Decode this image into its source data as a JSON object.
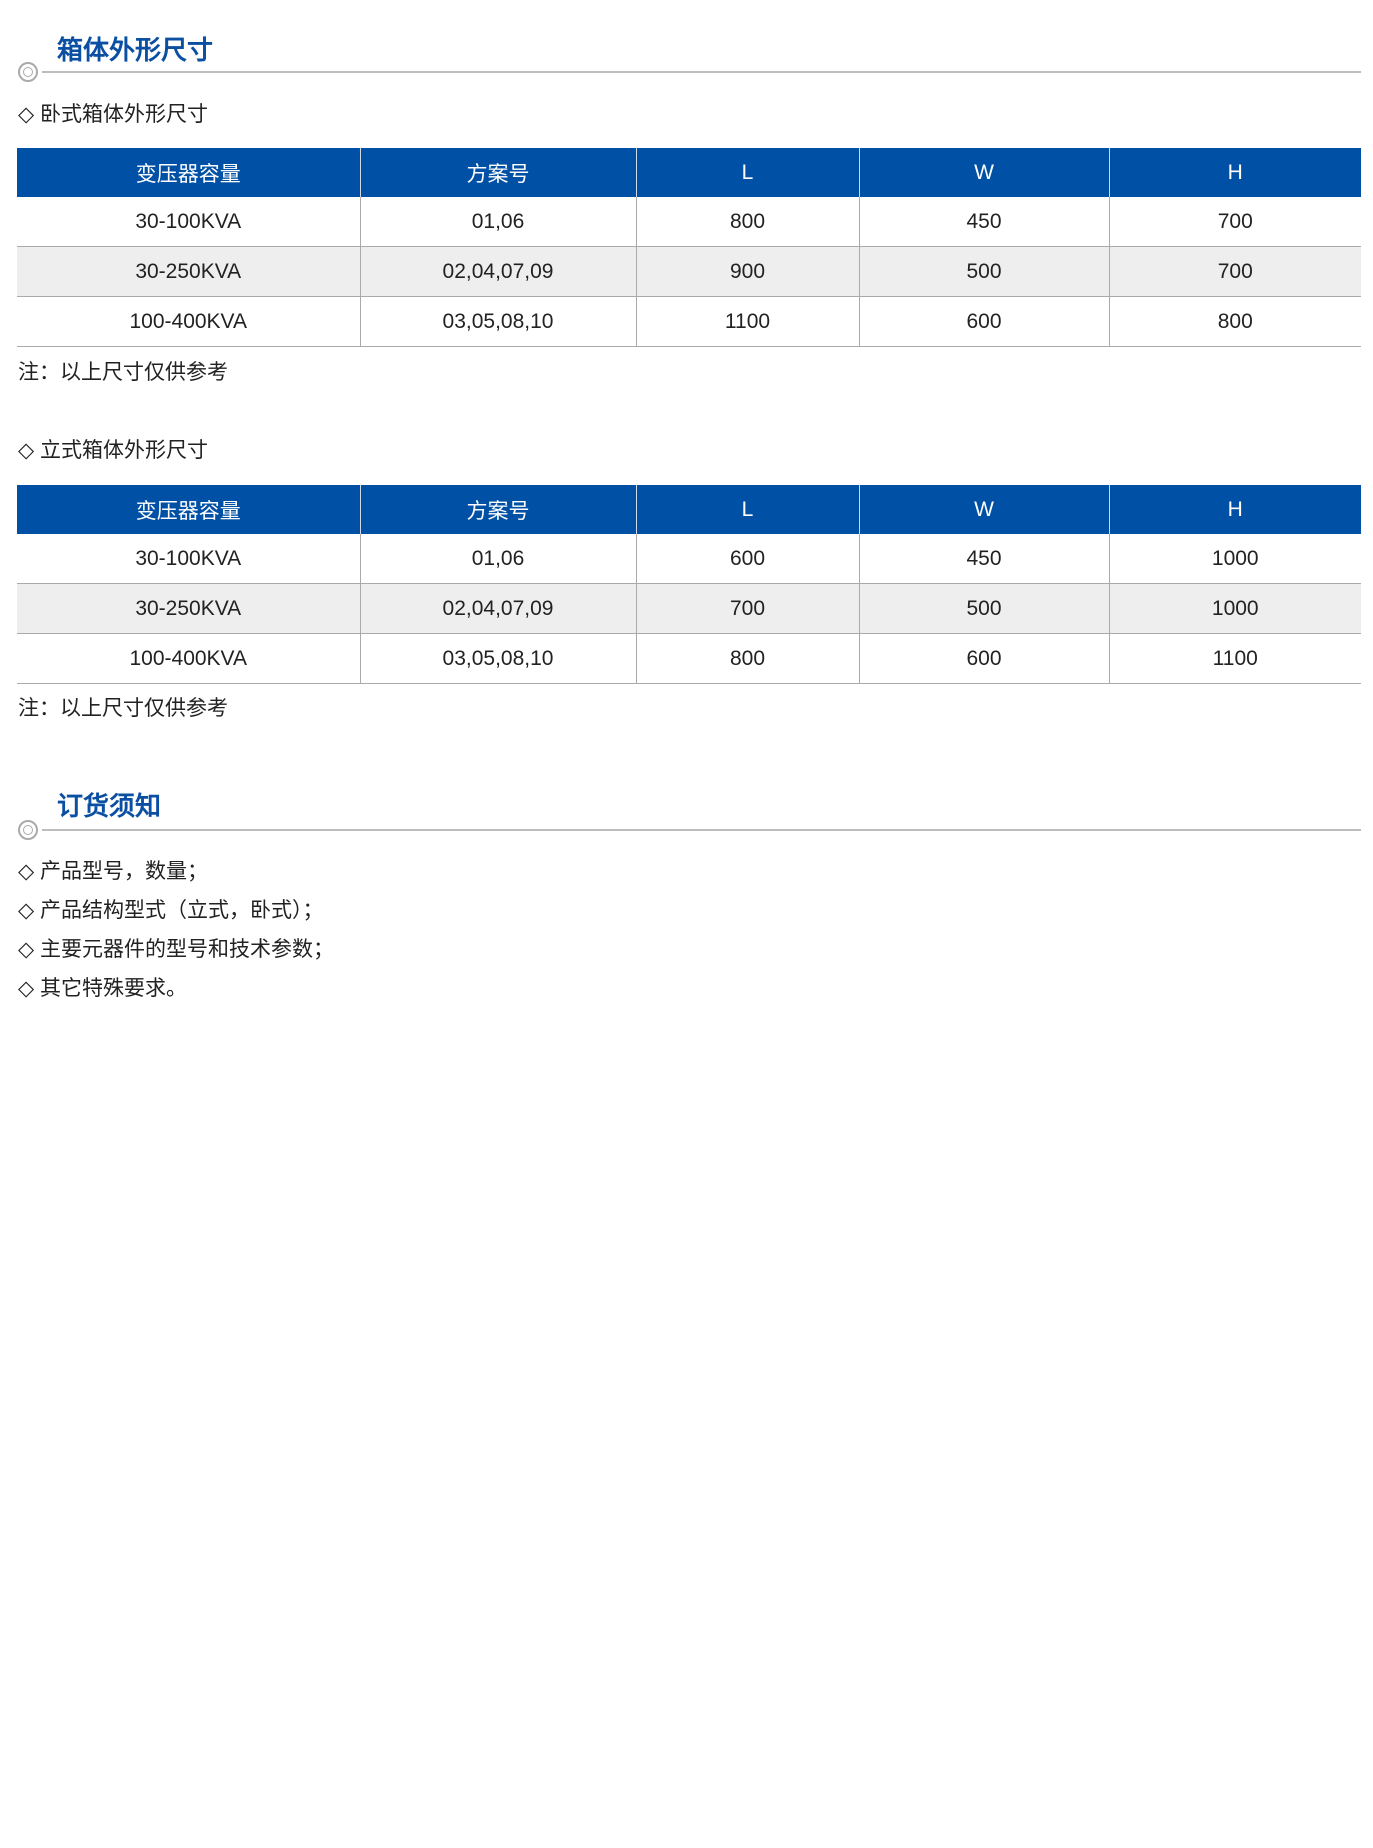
{
  "section1": {
    "title": "箱体外形尺寸",
    "tables": [
      {
        "heading": "卧式箱体外形尺寸",
        "columns": [
          "变压器容量",
          "方案号",
          "L",
          "W",
          "H"
        ],
        "rows": [
          [
            "30-100KVA",
            "01,06",
            "800",
            "450",
            "700"
          ],
          [
            "30-250KVA",
            "02,04,07,09",
            "900",
            "500",
            "700"
          ],
          [
            "100-400KVA",
            "03,05,08,10",
            "1100",
            "600",
            "800"
          ]
        ],
        "note": "注：以上尺寸仅供参考"
      },
      {
        "heading": "立式箱体外形尺寸",
        "columns": [
          "变压器容量",
          "方案号",
          "L",
          "W",
          "H"
        ],
        "rows": [
          [
            "30-100KVA",
            "01,06",
            "600",
            "450",
            "1000"
          ],
          [
            "30-250KVA",
            "02,04,07,09",
            "700",
            "500",
            "1000"
          ],
          [
            "100-400KVA",
            "03,05,08,10",
            "800",
            "600",
            "1100"
          ]
        ],
        "note": "注：以上尺寸仅供参考"
      }
    ]
  },
  "section2": {
    "title": "订货须知",
    "items": [
      "产品型号，数量；",
      "产品结构型式（立式，卧式）；",
      "主要元器件的型号和技术参数；",
      "其它特殊要求。"
    ]
  },
  "bullet": "◇",
  "colors": {
    "accent": "#0b4fa3",
    "header_bg": "#0050a5",
    "alt_row": "#eeeeee"
  }
}
